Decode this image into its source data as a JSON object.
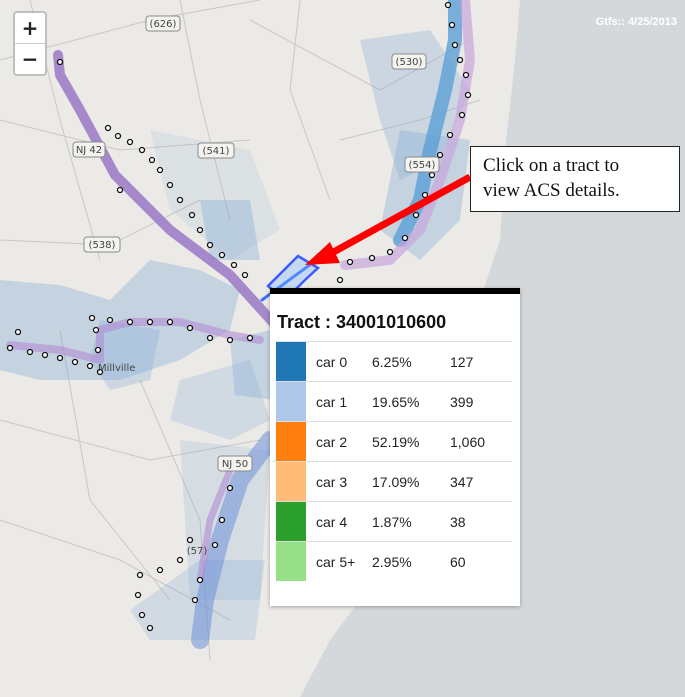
{
  "map": {
    "attribution": "Gtfs:: 4/25/2013",
    "road_labels": [
      "(626)",
      "(530)",
      "NJ 42",
      "(541)",
      "(554)",
      "(538)",
      "Millville",
      "NJ 50",
      "(57)"
    ],
    "zoom": {
      "in_label": "+",
      "out_label": "−"
    }
  },
  "callout": {
    "line1": "Click on a tract to",
    "line2": "view ACS details."
  },
  "popup": {
    "title": "Tract : 34001010600",
    "rows": [
      {
        "label": "car 0",
        "pct": "6.25%",
        "count": "127",
        "color": "#1f77b4"
      },
      {
        "label": "car 1",
        "pct": "19.65%",
        "count": "399",
        "color": "#aec7e8"
      },
      {
        "label": "car 2",
        "pct": "52.19%",
        "count": "1,060",
        "color": "#ff7f0e"
      },
      {
        "label": "car 3",
        "pct": "17.09%",
        "count": "347",
        "color": "#ffbb78"
      },
      {
        "label": "car 4",
        "pct": "1.87%",
        "count": "38",
        "color": "#2ca02c"
      },
      {
        "label": "car 5+",
        "pct": "2.95%",
        "count": "60",
        "color": "#98df8a"
      }
    ]
  }
}
